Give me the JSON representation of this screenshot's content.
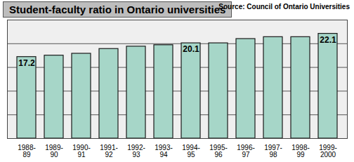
{
  "chart_data": {
    "type": "bar",
    "title": "Student-faculty ratio in Ontario universities",
    "annotations": [
      "Source: Council of Ontario Universities"
    ],
    "categories": [
      "1988-89",
      "1989-90",
      "1990-91",
      "1991-92",
      "1992-93",
      "1993-94",
      "1994-95",
      "1995-96",
      "1996-97",
      "1997-98",
      "1998-99",
      "1999-2000"
    ],
    "values": [
      17.2,
      17.5,
      17.9,
      18.9,
      19.4,
      19.7,
      20.1,
      20.1,
      21.0,
      21.4,
      21.4,
      22.1
    ],
    "value_labels": [
      "17.2",
      null,
      null,
      null,
      null,
      null,
      "20.1",
      null,
      null,
      null,
      null,
      "22.1"
    ],
    "color": "#a6d6c8",
    "ylim": [
      0,
      25
    ],
    "yticks": [
      0,
      5,
      10,
      15,
      20,
      25
    ],
    "grid": true,
    "tick_labels": "x"
  }
}
